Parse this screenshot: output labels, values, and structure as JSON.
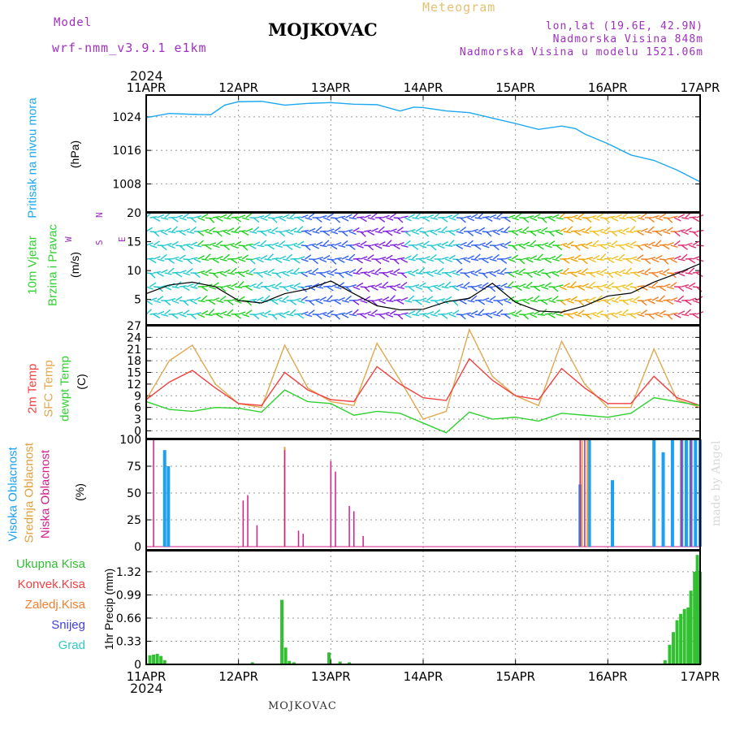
{
  "header": {
    "model_label": "Model",
    "model_value": "wrf-nmm_v3.9.1  e1km",
    "station": "MOJKOVAC",
    "product": "Meteogram",
    "lonlat": "lon,lat (19.6E, 42.9N)",
    "elevation": "Nadmorska Visina 848m",
    "model_elevation": "Nadmorska Visina u modelu 1521.06m",
    "year_top": "2024",
    "year_bottom": "2024",
    "footer_station": "MOJKOVAC",
    "watermark": "made by Angel"
  },
  "colors": {
    "pressure": "#1ea8f0",
    "temp2m": "#f04040",
    "sfc": "#e0a850",
    "dewpt": "#30d030",
    "high_cloud": "#1ea0f0",
    "mid_cloud": "#e0a040",
    "low_cloud": "#d0208a",
    "precip_total": "#30c030",
    "precip_conv": "#f04040",
    "precip_frz": "#f08030",
    "snow": "#4040e0",
    "hail": "#30c8c8",
    "axis_label_purple": "#a030c0"
  },
  "chart_data": [
    {
      "type": "line",
      "panel": "pressure",
      "ylabel": "Pritisak na nivou mora",
      "unit": "(hPa)",
      "x_ticks": [
        "11APR",
        "12APR",
        "13APR",
        "14APR",
        "15APR",
        "16APR",
        "17APR"
      ],
      "ylim": [
        1001.3,
        1029.2
      ],
      "y_ticks": [
        1008,
        1016,
        1024
      ],
      "grid": true,
      "series": [
        {
          "x": [
            0,
            0.25,
            0.5,
            0.7,
            0.85,
            1.0,
            1.25,
            1.5,
            1.75,
            2.0,
            2.25,
            2.5,
            2.75,
            2.9,
            3.0,
            3.25,
            3.5,
            3.75,
            4.0,
            4.25,
            4.5,
            4.65,
            4.75,
            5.0,
            5.25,
            5.5,
            5.75,
            6.0
          ],
          "values": [
            1023.8,
            1024.8,
            1024.6,
            1024.5,
            1026.8,
            1027.6,
            1027.7,
            1026.8,
            1027.2,
            1027.4,
            1027.0,
            1026.9,
            1025.4,
            1026.3,
            1026.2,
            1025.4,
            1025.0,
            1023.7,
            1022.4,
            1021.0,
            1021.8,
            1021.2,
            1019.9,
            1017.6,
            1014.9,
            1013.6,
            1011.3,
            1008.5
          ]
        }
      ]
    },
    {
      "type": "line",
      "panel": "wind",
      "ylabel": [
        "10m Vjetar",
        "Brzina i Pravac"
      ],
      "unit": "(m/s)",
      "ylim": [
        0.6,
        20
      ],
      "y_ticks": [
        5,
        10,
        15,
        20
      ],
      "compass": {
        "north": "N",
        "south": "S",
        "east": "E",
        "west": "W"
      },
      "series": [
        {
          "name": "speed",
          "x": [
            0,
            0.25,
            0.5,
            0.75,
            1.0,
            1.25,
            1.5,
            1.75,
            2.0,
            2.25,
            2.5,
            2.75,
            3.0,
            3.25,
            3.5,
            3.75,
            4.0,
            4.25,
            4.5,
            4.75,
            5.0,
            5.25,
            5.5,
            5.75,
            6.0
          ],
          "values": [
            6.0,
            7.5,
            8.0,
            7.2,
            4.8,
            4.4,
            6.0,
            6.8,
            8.2,
            6.0,
            3.9,
            3.2,
            3.3,
            4.6,
            5.2,
            7.8,
            4.5,
            3.0,
            2.8,
            3.9,
            5.6,
            6.1,
            8.0,
            9.5,
            11.2
          ]
        }
      ]
    },
    {
      "type": "line",
      "panel": "temperature",
      "unit": "(C)",
      "ylim": [
        -2,
        27
      ],
      "y_ticks": [
        0,
        3,
        6,
        9,
        12,
        15,
        18,
        21,
        24,
        27
      ],
      "grid": true,
      "series": [
        {
          "name": "2m Temp",
          "x": [
            0,
            0.25,
            0.5,
            0.75,
            1.0,
            1.25,
            1.5,
            1.75,
            2.0,
            2.25,
            2.5,
            2.75,
            3.0,
            3.25,
            3.5,
            3.75,
            4.0,
            4.25,
            4.5,
            4.75,
            5.0,
            5.25,
            5.5,
            5.75,
            6.0
          ],
          "values": [
            8.0,
            12.5,
            15.5,
            11.0,
            7.0,
            6.5,
            15.0,
            10.5,
            8.0,
            7.5,
            16.5,
            12.0,
            8.5,
            7.8,
            18.5,
            13.0,
            9.0,
            8.0,
            16.0,
            11.0,
            7.0,
            7.0,
            14.0,
            8.5,
            6.5
          ]
        },
        {
          "name": "SFC Temp",
          "x": [
            0,
            0.25,
            0.5,
            0.75,
            1.0,
            1.25,
            1.5,
            1.75,
            2.0,
            2.25,
            2.5,
            2.75,
            3.0,
            3.25,
            3.5,
            3.75,
            4.0,
            4.25,
            4.5,
            4.75,
            5.0,
            5.25,
            5.5,
            5.75,
            6.0
          ],
          "values": [
            8.0,
            18.0,
            22.0,
            12.0,
            7.0,
            6.0,
            22.0,
            11.0,
            7.5,
            6.5,
            22.5,
            13.0,
            3.0,
            5.0,
            26.0,
            14.0,
            9.0,
            6.5,
            23.0,
            12.0,
            6.0,
            6.0,
            21.0,
            8.0,
            6.0
          ]
        },
        {
          "name": "dewpt Temp",
          "x": [
            0,
            0.25,
            0.5,
            0.75,
            1.0,
            1.25,
            1.5,
            1.75,
            2.0,
            2.25,
            2.5,
            2.75,
            3.0,
            3.25,
            3.5,
            3.75,
            4.0,
            4.25,
            4.5,
            4.75,
            5.0,
            5.25,
            5.5,
            5.75,
            6.0
          ],
          "values": [
            7.5,
            5.5,
            5.0,
            6.0,
            5.8,
            4.8,
            10.5,
            7.5,
            7.0,
            4.0,
            5.0,
            4.5,
            2.0,
            -0.5,
            4.8,
            3.0,
            3.5,
            2.5,
            4.5,
            4.0,
            3.5,
            4.5,
            8.5,
            7.5,
            6.5
          ]
        }
      ]
    },
    {
      "type": "bar",
      "panel": "cloud",
      "unit": "(%)",
      "ylim": [
        -3,
        100
      ],
      "y_ticks": [
        0,
        25,
        50,
        75,
        100
      ],
      "grid": true,
      "series": [
        {
          "name": "Visoka Oblacnost",
          "x": [
            0.2,
            0.24,
            4.7,
            4.8,
            5.05,
            5.5,
            5.6,
            5.7,
            5.8,
            5.85,
            5.9,
            5.95,
            6.0
          ],
          "values": [
            90,
            75,
            58,
            100,
            62,
            100,
            88,
            100,
            100,
            100,
            100,
            100,
            100
          ]
        },
        {
          "name": "Srednja Oblacnost",
          "x": [
            1.5,
            4.72,
            4.78
          ],
          "values": [
            93,
            100,
            100
          ]
        },
        {
          "name": "Niska Oblacnost",
          "x": [
            0.08,
            1.05,
            1.1,
            1.2,
            1.5,
            1.65,
            1.7,
            2.0,
            2.05,
            2.2,
            2.25,
            2.35,
            4.7,
            4.75,
            5.8,
            5.9
          ],
          "values": [
            100,
            43,
            48,
            20,
            90,
            15,
            12,
            80,
            70,
            38,
            33,
            10,
            100,
            100,
            100,
            100
          ]
        }
      ]
    },
    {
      "type": "bar",
      "panel": "precip",
      "ylabel": "1hr Precip",
      "unit": "(mm)",
      "ylim": [
        0,
        1.62
      ],
      "y_ticks": [
        0,
        0.33,
        0.66,
        0.99,
        1.32
      ],
      "grid": true,
      "series": [
        {
          "name": "Ukupna Kisa",
          "x": [
            0.04,
            0.08,
            0.12,
            0.16,
            0.2,
            1.15,
            1.47,
            1.51,
            1.55,
            1.6,
            1.98,
            2.1,
            2.2,
            5.62,
            5.67,
            5.71,
            5.75,
            5.79,
            5.83,
            5.87,
            5.9,
            5.94,
            5.97,
            6.0
          ],
          "values": [
            0.13,
            0.14,
            0.15,
            0.12,
            0.06,
            0.03,
            0.92,
            0.24,
            0.05,
            0.03,
            0.17,
            0.04,
            0.03,
            0.06,
            0.28,
            0.46,
            0.63,
            0.72,
            0.79,
            0.81,
            1.05,
            1.32,
            1.56,
            1.32
          ]
        }
      ]
    }
  ],
  "labels": {
    "pressure_title": "Pritisak na nivou mora",
    "pressure_unit": "(hPa)",
    "wind_line1": "10m Vjetar",
    "wind_line2": "Brzina i Pravac",
    "wind_unit": "(m/s)",
    "temp_line1": "2m Temp",
    "temp_line2": "SFC Temp",
    "temp_line3": "dewpt Temp",
    "temp_unit": "(C)",
    "cloud_line1": "Visoka Oblacnost",
    "cloud_line2": "Srednja Oblacnost",
    "cloud_line3": "Niska Oblacnost",
    "cloud_unit": "(%)",
    "precip_title": "1hr Precip",
    "precip_unit": "(mm)",
    "leg_total": "Ukupna Kisa",
    "leg_conv": "Konvek.Kisa",
    "leg_frz": "Zaledj.Kisa",
    "leg_snow": "Snijeg",
    "leg_hail": "Grad"
  }
}
